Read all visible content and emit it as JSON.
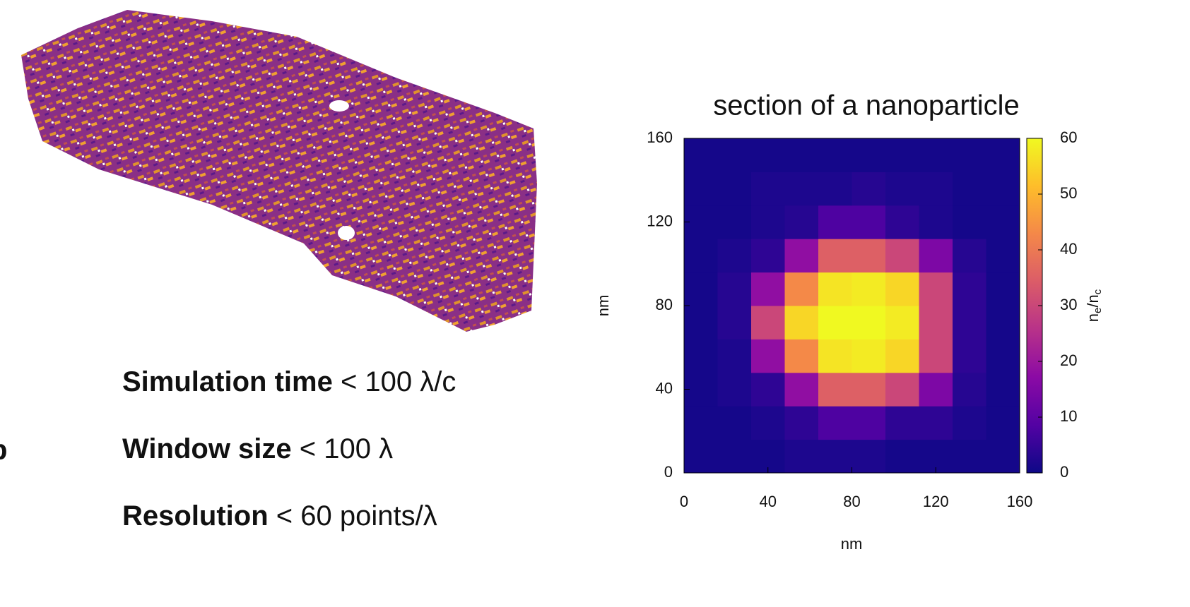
{
  "cropped_text": "p",
  "facts": [
    {
      "bold": "Simulation time",
      "rest": "< 100 λ/c"
    },
    {
      "bold": "Window size",
      "rest": "< 100 λ"
    },
    {
      "bold": "Resolution",
      "rest": "< 60 points/λ"
    }
  ],
  "chart_data": {
    "type": "heatmap",
    "title": "section of a nanoparticle",
    "x_label": "nm",
    "y_label": "nm",
    "colorbar_label": [
      "n",
      "e",
      "/n",
      "c"
    ],
    "x": [
      8,
      24,
      40,
      56,
      72,
      88,
      104,
      120,
      136,
      152
    ],
    "y": [
      8,
      24,
      40,
      56,
      72,
      88,
      104,
      120,
      136,
      152
    ],
    "z": [
      [
        1,
        1,
        1,
        2,
        2,
        2,
        1,
        1,
        1,
        1
      ],
      [
        1,
        1,
        2,
        4,
        8,
        8,
        4,
        4,
        2,
        1
      ],
      [
        1,
        2,
        4,
        18,
        35,
        35,
        30,
        15,
        3,
        1
      ],
      [
        1,
        2,
        18,
        43,
        57,
        58,
        55,
        30,
        4,
        1
      ],
      [
        1,
        3,
        30,
        55,
        60,
        61,
        58,
        30,
        4,
        1
      ],
      [
        1,
        3,
        18,
        43,
        57,
        58,
        55,
        30,
        4,
        1
      ],
      [
        1,
        2,
        4,
        18,
        35,
        35,
        30,
        15,
        3,
        1
      ],
      [
        1,
        1,
        2,
        3,
        8,
        8,
        4,
        2,
        1,
        1
      ],
      [
        1,
        1,
        2,
        2,
        2,
        3,
        2,
        2,
        1,
        1
      ],
      [
        1,
        1,
        1,
        1,
        1,
        1,
        1,
        1,
        1,
        1
      ]
    ],
    "xlim": [
      0,
      160
    ],
    "ylim": [
      0,
      160
    ],
    "xticks": [
      0,
      40,
      80,
      120,
      160
    ],
    "yticks": [
      0,
      40,
      80,
      120,
      160
    ],
    "zlim": [
      0,
      60
    ],
    "zticks": [
      0,
      10,
      20,
      30,
      40,
      50,
      60
    ],
    "colorscale": [
      "#0d0887",
      "#5302a3",
      "#8b0aa5",
      "#b83289",
      "#db5c68",
      "#f48849",
      "#febd2a",
      "#f0f921"
    ]
  }
}
